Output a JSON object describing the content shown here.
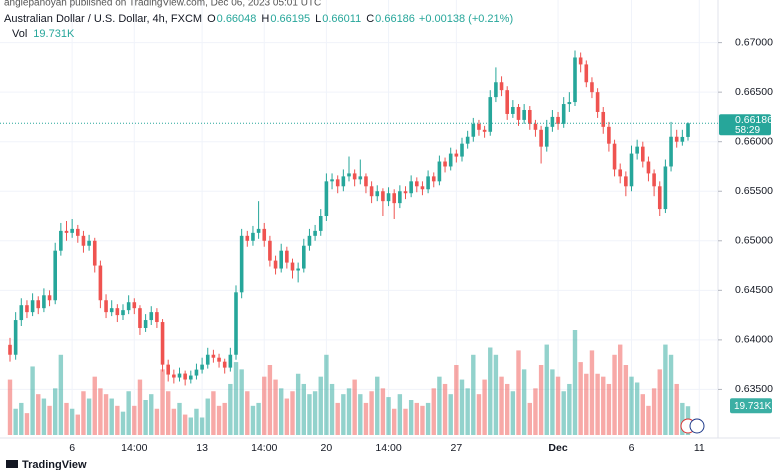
{
  "chart_data": {
    "type": "candlestick",
    "published": "anglepanoyan published on TradingView.com, Dec 06, 2023 05:01 UTC",
    "title": "Australian Dollar / U.S. Dollar, 4h, FXCM",
    "ohlc_letters": [
      "O",
      "H",
      "L",
      "C"
    ],
    "change": "+0.00138 (+0.21%)",
    "volume_title": "Vol",
    "volume_label": "19.731K",
    "countdown": "58:29",
    "brand": "TradingView",
    "up_color": "#26a69a",
    "down_color": "#ef5350",
    "grid": true,
    "ylim": [
      0.6304,
      0.6743
    ],
    "yticks": [
      {
        "value": 0.635,
        "label": "0.63500"
      },
      {
        "value": 0.64,
        "label": "0.64000"
      },
      {
        "value": 0.645,
        "label": "0.64500"
      },
      {
        "value": 0.65,
        "label": "0.65000"
      },
      {
        "value": 0.655,
        "label": "0.65500"
      },
      {
        "value": 0.66,
        "label": "0.66000"
      },
      {
        "value": 0.665,
        "label": "0.66500"
      },
      {
        "value": 0.67,
        "label": "0.67000"
      }
    ],
    "categories": [
      null,
      null,
      null,
      null,
      null,
      null,
      null,
      null,
      null,
      null,
      null,
      "6",
      null,
      null,
      null,
      null,
      null,
      null,
      null,
      null,
      null,
      null,
      "14:00",
      null,
      null,
      null,
      null,
      null,
      null,
      null,
      null,
      null,
      null,
      null,
      "13",
      null,
      null,
      null,
      null,
      null,
      null,
      null,
      null,
      null,
      null,
      "14:00",
      null,
      null,
      null,
      null,
      null,
      null,
      null,
      null,
      null,
      null,
      "20",
      null,
      null,
      null,
      null,
      null,
      null,
      null,
      null,
      null,
      null,
      "14:00",
      null,
      null,
      null,
      null,
      null,
      null,
      null,
      null,
      null,
      null,
      null,
      "27",
      null,
      null,
      null,
      null,
      null,
      null,
      null,
      null,
      null,
      null,
      null,
      null,
      null,
      null,
      null,
      null,
      null,
      "Dec",
      null,
      null,
      null,
      null,
      null,
      null,
      null,
      null,
      null,
      null,
      null,
      null,
      "6",
      null,
      null,
      null,
      null,
      null,
      null,
      null,
      null,
      null,
      null,
      null,
      "11",
      null
    ],
    "candles": [
      [
        0.6395,
        0.6402,
        0.6378,
        0.6385
      ],
      [
        0.6385,
        0.6428,
        0.638,
        0.642
      ],
      [
        0.642,
        0.6442,
        0.6414,
        0.6435
      ],
      [
        0.6435,
        0.644,
        0.6422,
        0.6428
      ],
      [
        0.6428,
        0.6447,
        0.6424,
        0.644
      ],
      [
        0.644,
        0.6444,
        0.6426,
        0.6432
      ],
      [
        0.6432,
        0.6452,
        0.6428,
        0.6445
      ],
      [
        0.6445,
        0.645,
        0.6434,
        0.644
      ],
      [
        0.644,
        0.6498,
        0.6436,
        0.649
      ],
      [
        0.649,
        0.6518,
        0.6485,
        0.651
      ],
      [
        0.651,
        0.652,
        0.65,
        0.6508
      ],
      [
        0.6508,
        0.6522,
        0.6503,
        0.6512
      ],
      [
        0.6512,
        0.6516,
        0.6498,
        0.6505
      ],
      [
        0.6505,
        0.651,
        0.6488,
        0.6495
      ],
      [
        0.6495,
        0.6506,
        0.649,
        0.65
      ],
      [
        0.65,
        0.6503,
        0.6468,
        0.6475
      ],
      [
        0.6475,
        0.648,
        0.6432,
        0.644
      ],
      [
        0.644,
        0.6446,
        0.6422,
        0.6428
      ],
      [
        0.6428,
        0.644,
        0.6424,
        0.6432
      ],
      [
        0.6432,
        0.6436,
        0.6418,
        0.6425
      ],
      [
        0.6425,
        0.6436,
        0.642,
        0.643
      ],
      [
        0.643,
        0.6445,
        0.6426,
        0.6438
      ],
      [
        0.6438,
        0.6442,
        0.6426,
        0.6432
      ],
      [
        0.6432,
        0.6435,
        0.6405,
        0.6412
      ],
      [
        0.6412,
        0.6426,
        0.6408,
        0.642
      ],
      [
        0.642,
        0.6434,
        0.6415,
        0.6428
      ],
      [
        0.6428,
        0.6432,
        0.6412,
        0.6418
      ],
      [
        0.6418,
        0.6421,
        0.6368,
        0.6375
      ],
      [
        0.6375,
        0.638,
        0.6358,
        0.6365
      ],
      [
        0.6365,
        0.637,
        0.6356,
        0.6362
      ],
      [
        0.6362,
        0.6372,
        0.6358,
        0.6366
      ],
      [
        0.6366,
        0.6369,
        0.6354,
        0.636
      ],
      [
        0.636,
        0.6369,
        0.6356,
        0.6364
      ],
      [
        0.6364,
        0.6376,
        0.636,
        0.637
      ],
      [
        0.637,
        0.6382,
        0.6366,
        0.6375
      ],
      [
        0.6375,
        0.6392,
        0.6371,
        0.6385
      ],
      [
        0.6385,
        0.639,
        0.6377,
        0.6382
      ],
      [
        0.6382,
        0.6386,
        0.6372,
        0.6378
      ],
      [
        0.6378,
        0.6381,
        0.6366,
        0.6372
      ],
      [
        0.6372,
        0.6392,
        0.6368,
        0.6385
      ],
      [
        0.6385,
        0.6455,
        0.638,
        0.6448
      ],
      [
        0.6448,
        0.6512,
        0.6442,
        0.6505
      ],
      [
        0.6505,
        0.651,
        0.6494,
        0.65
      ],
      [
        0.65,
        0.6515,
        0.6495,
        0.6508
      ],
      [
        0.6508,
        0.654,
        0.6502,
        0.6512
      ],
      [
        0.6512,
        0.6518,
        0.6494,
        0.65
      ],
      [
        0.65,
        0.6505,
        0.6474,
        0.648
      ],
      [
        0.648,
        0.6485,
        0.6466,
        0.6472
      ],
      [
        0.6472,
        0.6497,
        0.6468,
        0.649
      ],
      [
        0.649,
        0.6494,
        0.6472,
        0.6478
      ],
      [
        0.6478,
        0.6482,
        0.6462,
        0.647
      ],
      [
        0.647,
        0.6478,
        0.6458,
        0.6472
      ],
      [
        0.6472,
        0.6502,
        0.6468,
        0.6495
      ],
      [
        0.6495,
        0.6512,
        0.649,
        0.6505
      ],
      [
        0.6505,
        0.6516,
        0.65,
        0.651
      ],
      [
        0.651,
        0.6532,
        0.6505,
        0.6525
      ],
      [
        0.6525,
        0.6568,
        0.652,
        0.656
      ],
      [
        0.656,
        0.6568,
        0.6552,
        0.6562
      ],
      [
        0.6562,
        0.6566,
        0.6548,
        0.6555
      ],
      [
        0.6555,
        0.6572,
        0.655,
        0.6565
      ],
      [
        0.6565,
        0.6585,
        0.656,
        0.6568
      ],
      [
        0.6568,
        0.6572,
        0.6555,
        0.6562
      ],
      [
        0.6562,
        0.6582,
        0.6557,
        0.6565
      ],
      [
        0.6565,
        0.6568,
        0.6548,
        0.6555
      ],
      [
        0.6555,
        0.656,
        0.6538,
        0.6545
      ],
      [
        0.6545,
        0.6556,
        0.654,
        0.655
      ],
      [
        0.655,
        0.6553,
        0.6525,
        0.654
      ],
      [
        0.654,
        0.6554,
        0.6535,
        0.6548
      ],
      [
        0.6548,
        0.6552,
        0.6522,
        0.6538
      ],
      [
        0.6538,
        0.6556,
        0.6533,
        0.655
      ],
      [
        0.655,
        0.6555,
        0.6542,
        0.6548
      ],
      [
        0.6548,
        0.6566,
        0.6544,
        0.656
      ],
      [
        0.656,
        0.6564,
        0.6549,
        0.6555
      ],
      [
        0.6555,
        0.656,
        0.6546,
        0.6552
      ],
      [
        0.6552,
        0.6571,
        0.6548,
        0.6565
      ],
      [
        0.6565,
        0.6569,
        0.6554,
        0.656
      ],
      [
        0.656,
        0.6586,
        0.6556,
        0.658
      ],
      [
        0.658,
        0.6584,
        0.6569,
        0.6575
      ],
      [
        0.6575,
        0.6594,
        0.6571,
        0.6588
      ],
      [
        0.6588,
        0.6592,
        0.6579,
        0.6585
      ],
      [
        0.6585,
        0.6604,
        0.658,
        0.6598
      ],
      [
        0.6598,
        0.6611,
        0.6593,
        0.6605
      ],
      [
        0.6605,
        0.6624,
        0.66,
        0.6618
      ],
      [
        0.6618,
        0.6622,
        0.6606,
        0.6612
      ],
      [
        0.6612,
        0.6616,
        0.6604,
        0.661
      ],
      [
        0.661,
        0.6652,
        0.6606,
        0.6645
      ],
      [
        0.6645,
        0.6675,
        0.664,
        0.666
      ],
      [
        0.666,
        0.6666,
        0.6646,
        0.6652
      ],
      [
        0.6652,
        0.6656,
        0.6622,
        0.6628
      ],
      [
        0.6628,
        0.6642,
        0.6624,
        0.6635
      ],
      [
        0.6635,
        0.6638,
        0.6616,
        0.6622
      ],
      [
        0.6622,
        0.6638,
        0.6618,
        0.6632
      ],
      [
        0.6632,
        0.6636,
        0.6612,
        0.6618
      ],
      [
        0.6618,
        0.6622,
        0.6605,
        0.6612
      ],
      [
        0.6612,
        0.6616,
        0.6578,
        0.6595
      ],
      [
        0.6595,
        0.6622,
        0.659,
        0.6615
      ],
      [
        0.6615,
        0.6632,
        0.661,
        0.6625
      ],
      [
        0.6625,
        0.663,
        0.6612,
        0.6618
      ],
      [
        0.6618,
        0.6645,
        0.6614,
        0.6638
      ],
      [
        0.6638,
        0.665,
        0.663,
        0.664
      ],
      [
        0.664,
        0.6692,
        0.6636,
        0.6685
      ],
      [
        0.6685,
        0.669,
        0.667,
        0.6678
      ],
      [
        0.6678,
        0.6682,
        0.6655,
        0.666
      ],
      [
        0.666,
        0.6665,
        0.6644,
        0.665
      ],
      [
        0.665,
        0.6654,
        0.6624,
        0.663
      ],
      [
        0.663,
        0.6635,
        0.6608,
        0.6615
      ],
      [
        0.6615,
        0.662,
        0.659,
        0.6598
      ],
      [
        0.6598,
        0.6602,
        0.6565,
        0.6572
      ],
      [
        0.6572,
        0.6578,
        0.6558,
        0.6565
      ],
      [
        0.6565,
        0.657,
        0.6545,
        0.6555
      ],
      [
        0.6555,
        0.6596,
        0.655,
        0.6588
      ],
      [
        0.6588,
        0.6602,
        0.6582,
        0.6595
      ],
      [
        0.6595,
        0.66,
        0.6574,
        0.658
      ],
      [
        0.658,
        0.6585,
        0.656,
        0.6568
      ],
      [
        0.6568,
        0.6572,
        0.6545,
        0.6555
      ],
      [
        0.6555,
        0.656,
        0.6525,
        0.6532
      ],
      [
        0.6532,
        0.6582,
        0.6528,
        0.6575
      ],
      [
        0.6575,
        0.662,
        0.657,
        0.6605
      ],
      [
        0.6605,
        0.6612,
        0.6594,
        0.66
      ],
      [
        0.66,
        0.6612,
        0.6596,
        0.66048
      ],
      [
        0.66048,
        0.66195,
        0.66011,
        0.66186
      ],
      null,
      null,
      null
    ],
    "volume": [
      38,
      18,
      22,
      15,
      47,
      28,
      25,
      20,
      32,
      55,
      22,
      18,
      14,
      30,
      25,
      40,
      32,
      28,
      25,
      20,
      16,
      30,
      20,
      38,
      24,
      28,
      18,
      45,
      30,
      18,
      22,
      14,
      12,
      18,
      12,
      25,
      30,
      20,
      22,
      35,
      50,
      45,
      30,
      20,
      22,
      40,
      48,
      38,
      32,
      25,
      30,
      42,
      35,
      28,
      30,
      40,
      55,
      35,
      22,
      28,
      32,
      38,
      28,
      22,
      30,
      40,
      32,
      26,
      18,
      28,
      18,
      24,
      22,
      20,
      22,
      32,
      40,
      35,
      28,
      48,
      38,
      32,
      55,
      28,
      38,
      60,
      55,
      40,
      35,
      30,
      58,
      45,
      22,
      32,
      48,
      62,
      45,
      40,
      30,
      35,
      72,
      50,
      42,
      58,
      42,
      40,
      35,
      55,
      62,
      48,
      40,
      36,
      28,
      20,
      32,
      45,
      62,
      55,
      35,
      22,
      19.731,
      null,
      null,
      null
    ]
  }
}
